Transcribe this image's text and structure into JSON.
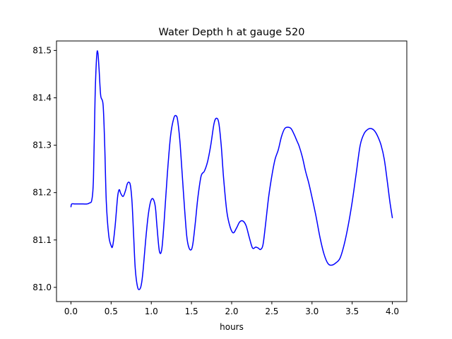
{
  "chart_data": {
    "type": "line",
    "title": "Water Depth h at gauge 520",
    "xlabel": "hours",
    "ylabel": "",
    "xlim": [
      -0.18,
      4.18
    ],
    "ylim": [
      80.97,
      81.52
    ],
    "xticks": [
      0.0,
      0.5,
      1.0,
      1.5,
      2.0,
      2.5,
      3.0,
      3.5,
      4.0
    ],
    "xtick_labels": [
      "0.0",
      "0.5",
      "1.0",
      "1.5",
      "2.0",
      "2.5",
      "3.0",
      "3.5",
      "4.0"
    ],
    "yticks": [
      81.0,
      81.1,
      81.2,
      81.3,
      81.4,
      81.5
    ],
    "ytick_labels": [
      "81.0",
      "81.1",
      "81.2",
      "81.3",
      "81.4",
      "81.5"
    ],
    "grid": false,
    "legend": "none",
    "series": [
      {
        "color": "#0000ff",
        "x": [
          0.0,
          0.01,
          0.05,
          0.1,
          0.15,
          0.2,
          0.23,
          0.26,
          0.28,
          0.3,
          0.32,
          0.335,
          0.35,
          0.37,
          0.4,
          0.42,
          0.44,
          0.47,
          0.5,
          0.52,
          0.55,
          0.58,
          0.6,
          0.62,
          0.65,
          0.68,
          0.7,
          0.72,
          0.74,
          0.76,
          0.78,
          0.8,
          0.83,
          0.86,
          0.88,
          0.9,
          0.93,
          0.96,
          0.99,
          1.02,
          1.05,
          1.07,
          1.1,
          1.13,
          1.16,
          1.2,
          1.24,
          1.28,
          1.31,
          1.33,
          1.36,
          1.4,
          1.44,
          1.47,
          1.5,
          1.52,
          1.55,
          1.58,
          1.62,
          1.66,
          1.7,
          1.74,
          1.78,
          1.81,
          1.84,
          1.87,
          1.9,
          1.94,
          1.98,
          2.02,
          2.06,
          2.1,
          2.14,
          2.18,
          2.22,
          2.26,
          2.3,
          2.33,
          2.36,
          2.39,
          2.42,
          2.46,
          2.5,
          2.54,
          2.58,
          2.62,
          2.66,
          2.7,
          2.74,
          2.78,
          2.81,
          2.84,
          2.88,
          2.92,
          2.96,
          3.0,
          3.05,
          3.1,
          3.15,
          3.2,
          3.25,
          3.3,
          3.35,
          3.4,
          3.45,
          3.5,
          3.55,
          3.6,
          3.65,
          3.7,
          3.74,
          3.78,
          3.82,
          3.86,
          3.9,
          3.94,
          3.97,
          4.0
        ],
        "y": [
          81.17,
          81.176,
          81.176,
          81.176,
          81.176,
          81.176,
          81.178,
          81.185,
          81.23,
          81.4,
          81.488,
          81.495,
          81.46,
          81.405,
          81.385,
          81.3,
          81.18,
          81.11,
          81.088,
          81.088,
          81.13,
          81.19,
          81.206,
          81.198,
          81.192,
          81.205,
          81.218,
          81.222,
          81.215,
          81.18,
          81.11,
          81.04,
          81.0,
          80.997,
          81.01,
          81.04,
          81.1,
          81.15,
          81.18,
          81.187,
          81.17,
          81.13,
          81.077,
          81.08,
          81.14,
          81.24,
          81.32,
          81.357,
          81.362,
          81.35,
          81.3,
          81.2,
          81.11,
          81.083,
          81.08,
          81.095,
          81.14,
          81.19,
          81.235,
          81.245,
          81.265,
          81.3,
          81.345,
          81.357,
          81.347,
          81.3,
          81.23,
          81.16,
          81.128,
          81.115,
          81.125,
          81.138,
          81.14,
          81.13,
          81.105,
          81.083,
          81.085,
          81.083,
          81.08,
          81.09,
          81.13,
          81.19,
          81.235,
          81.27,
          81.29,
          81.318,
          81.335,
          81.338,
          81.335,
          81.322,
          81.31,
          81.298,
          81.275,
          81.245,
          81.22,
          81.19,
          81.15,
          81.105,
          81.07,
          81.05,
          81.047,
          81.052,
          81.062,
          81.09,
          81.13,
          81.18,
          81.24,
          81.3,
          81.325,
          81.334,
          81.335,
          81.33,
          81.318,
          81.3,
          81.27,
          81.22,
          81.18,
          81.147
        ]
      }
    ]
  }
}
